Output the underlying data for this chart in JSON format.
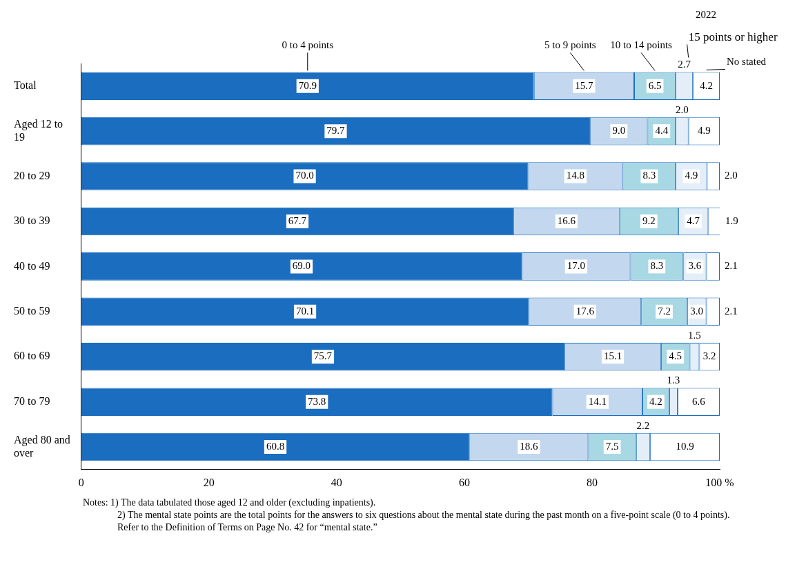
{
  "chart_data": {
    "type": "bar",
    "orientation": "horizontal",
    "stacked": true,
    "subtitle": "2022",
    "categories": [
      "Total",
      "Aged 12 to 19",
      "20 to 29",
      "30 to 39",
      "40 to 49",
      "50 to 59",
      "60 to 69",
      "70 to 79",
      "Aged 80 and over"
    ],
    "series": [
      {
        "name": "0 to 4 points",
        "color": "#1a6dbf",
        "values": [
          70.9,
          79.7,
          70.0,
          67.7,
          69.0,
          70.1,
          75.7,
          73.8,
          60.8
        ],
        "value_labels": [
          "70.9",
          "79.7",
          "70.0",
          "67.7",
          "69.0",
          "70.1",
          "75.7",
          "73.8",
          "60.8"
        ]
      },
      {
        "name": "5 to 9 points",
        "color": "#c3d8ee",
        "values": [
          15.7,
          9.0,
          14.8,
          16.6,
          17.0,
          17.6,
          15.1,
          14.1,
          18.6
        ],
        "value_labels": [
          "15.7",
          "9.0",
          "14.8",
          "16.6",
          "17.0",
          "17.6",
          "15.1",
          "14.1",
          "18.6"
        ]
      },
      {
        "name": "10 to 14 points",
        "color": "#a8d8e4",
        "values": [
          6.5,
          4.4,
          8.3,
          9.2,
          8.3,
          7.2,
          4.5,
          4.2,
          7.5
        ],
        "value_labels": [
          "6.5",
          "4.4",
          "8.3",
          "9.2",
          "8.3",
          "7.2",
          "4.5",
          "4.2",
          "7.5"
        ]
      },
      {
        "name": "15 points or higher",
        "color": "#e4eef8",
        "values": [
          2.7,
          2.0,
          4.9,
          4.7,
          3.6,
          3.0,
          1.5,
          1.3,
          2.2
        ],
        "value_labels": [
          "2.7",
          "2.0",
          "4.9",
          "4.7",
          "3.6",
          "3.0",
          "1.5",
          "1.3",
          "2.2"
        ]
      },
      {
        "name": "No stated",
        "color": "#ffffff",
        "values": [
          4.2,
          4.9,
          2.0,
          1.9,
          2.1,
          2.1,
          3.2,
          6.6,
          10.9
        ],
        "value_labels": [
          "4.2",
          "4.9",
          "2.0",
          "1.9",
          "2.1",
          "2.1",
          "3.2",
          "6.6",
          "10.9"
        ]
      }
    ],
    "xlim": [
      0,
      100
    ],
    "xticks": [
      0,
      20,
      40,
      60,
      80,
      {
        "value": 100,
        "label": "100 %"
      }
    ],
    "grid": false,
    "legend": false,
    "annotations": [
      "Notes: 1) The data tabulated those aged 12 and older (excluding inpatients).",
      "2) The mental state points are the total points for the answers to six questions about the mental state during the past month on a five-point scale (0 to 4 points).",
      "Refer to the Definition of Terms on Page No. 42 for “mental state.”"
    ]
  }
}
